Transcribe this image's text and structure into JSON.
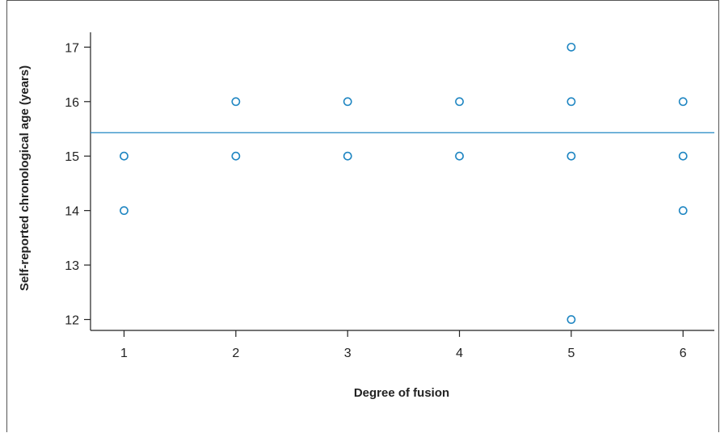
{
  "chart_data": {
    "type": "scatter",
    "xlabel": "Degree of fusion",
    "ylabel": "Self-reported chronological age (years)",
    "xlim": [
      0.7,
      6.28
    ],
    "ylim": [
      11.8,
      17.45
    ],
    "xticks": [
      1,
      2,
      3,
      4,
      5,
      6
    ],
    "yticks": [
      12,
      13,
      14,
      15,
      16,
      17
    ],
    "points": [
      {
        "x": 1,
        "y": 15
      },
      {
        "x": 1,
        "y": 14
      },
      {
        "x": 2,
        "y": 16
      },
      {
        "x": 2,
        "y": 15
      },
      {
        "x": 3,
        "y": 16
      },
      {
        "x": 3,
        "y": 15
      },
      {
        "x": 4,
        "y": 16
      },
      {
        "x": 4,
        "y": 15
      },
      {
        "x": 5,
        "y": 17
      },
      {
        "x": 5,
        "y": 16
      },
      {
        "x": 5,
        "y": 15
      },
      {
        "x": 5,
        "y": 12
      },
      {
        "x": 6,
        "y": 16
      },
      {
        "x": 6,
        "y": 15
      },
      {
        "x": 6,
        "y": 14
      }
    ],
    "reference_line": {
      "y": 15.43
    },
    "grid": false,
    "legend": "none",
    "marker": "open-circle",
    "color": "#1f86c2"
  }
}
